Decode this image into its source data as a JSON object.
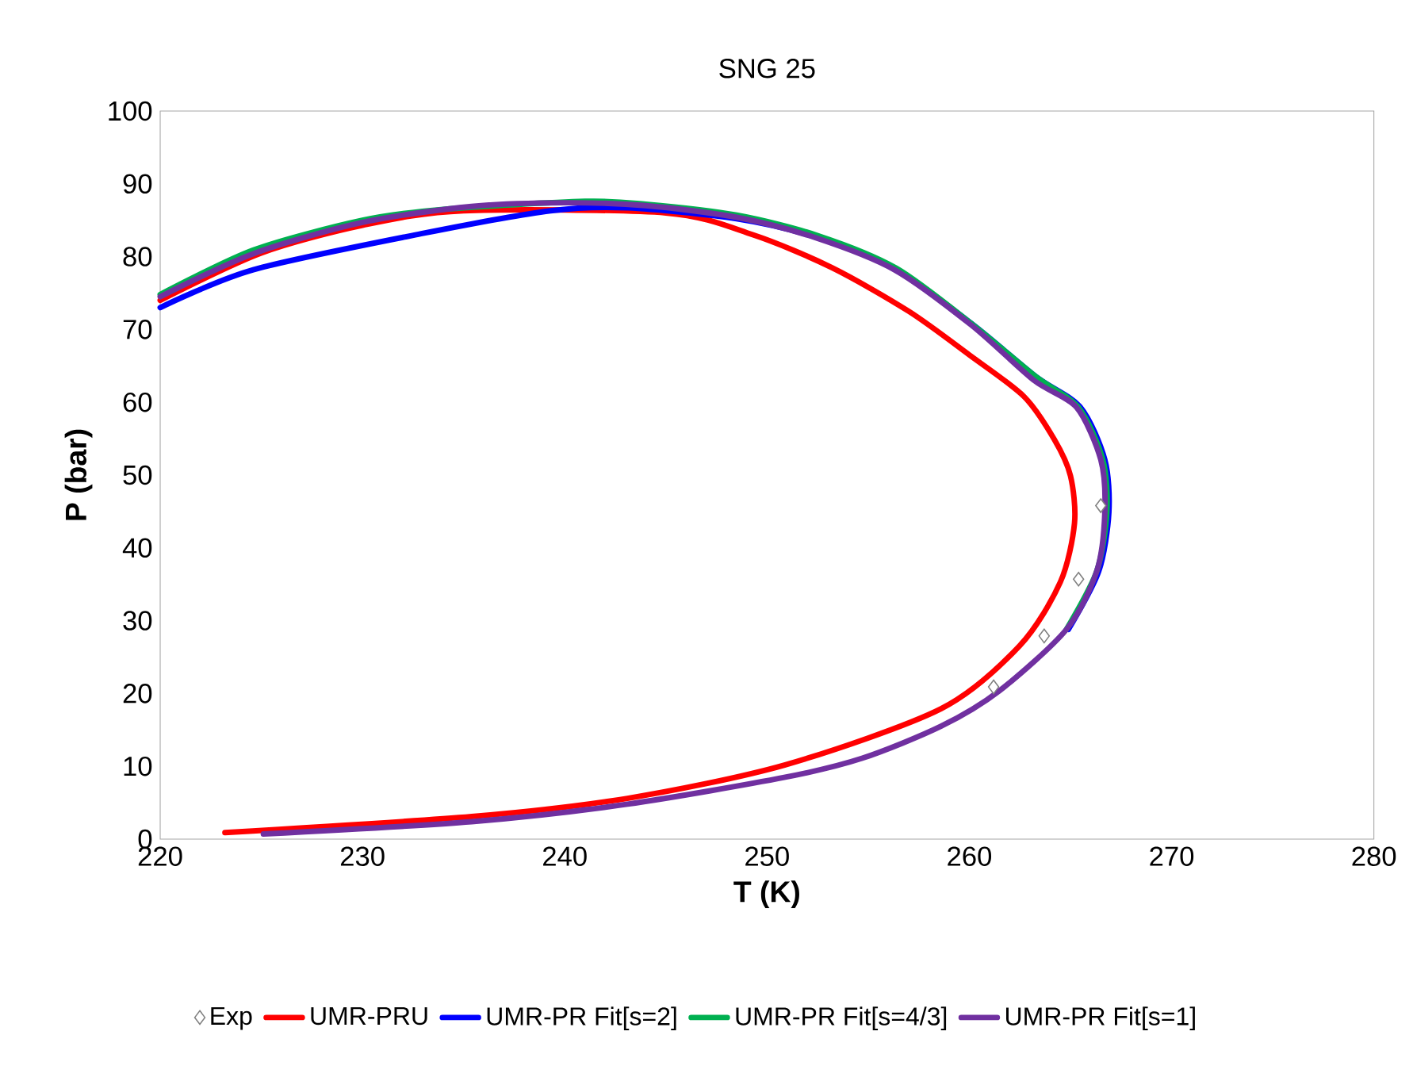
{
  "chart_data": {
    "type": "line",
    "title": "SNG 25",
    "xlabel": "T (K)",
    "ylabel": "P (bar)",
    "xlim": [
      220,
      280
    ],
    "ylim": [
      0,
      100
    ],
    "xticks": [
      220,
      230,
      240,
      250,
      260,
      270,
      280
    ],
    "yticks": [
      0,
      10,
      20,
      30,
      40,
      50,
      60,
      70,
      80,
      90,
      100
    ],
    "legend": "bottom",
    "grid": false,
    "line_style": "solid",
    "series": [
      {
        "name": "Exp",
        "type": "scatter",
        "marker": "diamond",
        "color": "#808080",
        "x": [
          261.2,
          263.7,
          265.4,
          266.5
        ],
        "values": [
          20.9,
          27.9,
          35.7,
          45.8
        ]
      },
      {
        "name": "UMR-PRU",
        "color": "#ff0000",
        "x": [
          223.2,
          235.4,
          243.1,
          250.9,
          258.6,
          262.5,
          264.5,
          265.2,
          265.0,
          264.2,
          262.7,
          260.0,
          257.0,
          253.2,
          249.3,
          245.0,
          241.0,
          235.0,
          230.0,
          225.0,
          220.0
        ],
        "values": [
          0.9,
          3.1,
          5.6,
          10.2,
          17.9,
          26.6,
          35.3,
          43.4,
          49.9,
          54.9,
          60.8,
          66.5,
          72.5,
          78.5,
          83.0,
          86.0,
          null,
          86.3,
          84.3,
          80.5,
          74.0
        ]
      },
      {
        "name": "UMR-PR Fit[s=2]",
        "color": "#0000ff",
        "x": [
          264.9,
          266.4,
          266.9,
          266.7,
          265.5,
          263.3,
          260.2,
          256.4,
          252.5,
          248.5,
          243.1,
          239.3,
          233.0,
          224.6,
          220.0
        ],
        "values": [
          28.8,
          36.8,
          44.9,
          52.1,
          59.3,
          63.5,
          70.6,
          78.2,
          82.6,
          85.2,
          86.7,
          86.3,
          83.2,
          78.2,
          73.0
        ]
      },
      {
        "name": "UMR-PR Fit[s=4/3]",
        "color": "#00b050",
        "x": [
          264.8,
          266.3,
          266.8,
          266.6,
          265.4,
          263.3,
          260.2,
          256.4,
          252.5,
          248.5,
          244.0,
          241.0,
          234.0,
          230.0,
          224.6,
          220.0
        ],
        "values": [
          28.8,
          36.8,
          44.9,
          52.1,
          59.3,
          63.5,
          70.6,
          78.4,
          82.9,
          85.7,
          87.2,
          87.6,
          86.5,
          85.0,
          80.9,
          74.8
        ]
      },
      {
        "name": "UMR-PR Fit[s=1]",
        "color": "#7030a0",
        "x": [
          225.1,
          235.4,
          243.1,
          250.9,
          254.7,
          258.6,
          261.5,
          264.8,
          266.3,
          266.7,
          266.5,
          265.3,
          263.2,
          260.1,
          256.3,
          252.4,
          248.5,
          244.0,
          240.0,
          235.4,
          230.0,
          224.6,
          220.0
        ],
        "values": [
          0.7,
          2.4,
          4.8,
          8.5,
          11.1,
          15.5,
          20.4,
          28.8,
          36.8,
          44.9,
          52.1,
          59.3,
          63.0,
          70.6,
          78.2,
          82.6,
          85.4,
          87.0,
          87.4,
          86.9,
          84.7,
          80.4,
          74.5
        ]
      }
    ]
  }
}
